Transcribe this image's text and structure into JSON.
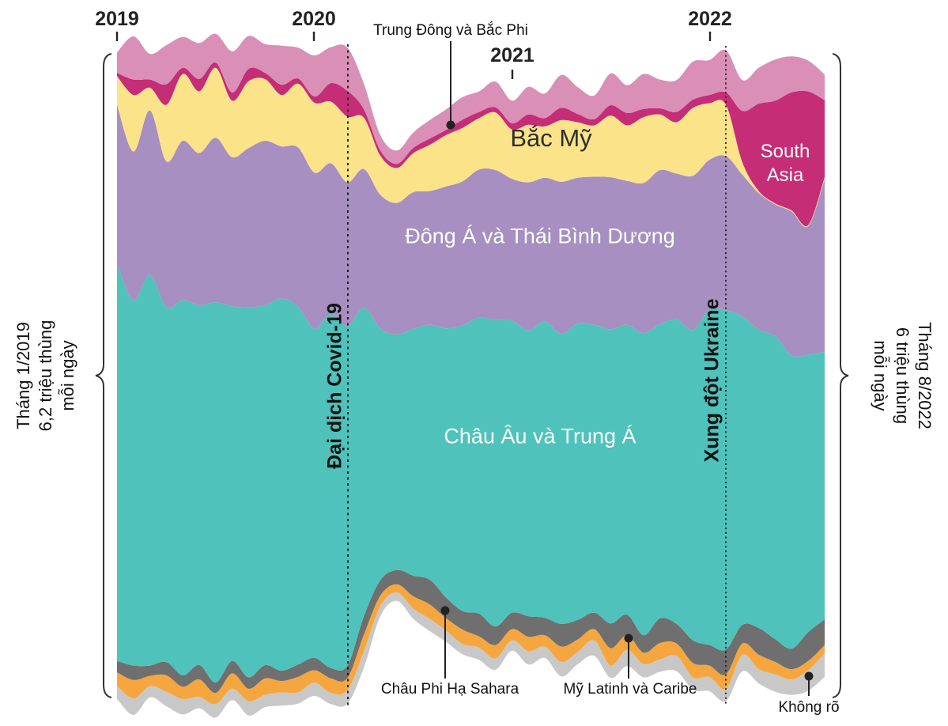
{
  "chart_data": {
    "type": "area",
    "stacked": true,
    "layout": "streamgraph-silhouette",
    "grid": false,
    "legend": "labels-inside-bands",
    "unit": "triệu thùng mỗi ngày (million barrels per day)",
    "x_tick_years": [
      "2019",
      "2020",
      "2021",
      "2022"
    ],
    "x": [
      "1/2019",
      "2/2019",
      "3/2019",
      "4/2019",
      "5/2019",
      "6/2019",
      "7/2019",
      "8/2019",
      "9/2019",
      "10/2019",
      "11/2019",
      "12/2019",
      "1/2020",
      "2/2020",
      "3/2020",
      "4/2020",
      "5/2020",
      "6/2020",
      "7/2020",
      "8/2020",
      "9/2020",
      "10/2020",
      "11/2020",
      "12/2020",
      "1/2021",
      "2/2021",
      "3/2021",
      "4/2021",
      "5/2021",
      "6/2021",
      "7/2021",
      "8/2021",
      "9/2021",
      "10/2021",
      "11/2021",
      "12/2021",
      "1/2022",
      "2/2022",
      "3/2022",
      "4/2022",
      "5/2022",
      "6/2022",
      "7/2022",
      "8/2022"
    ],
    "series": [
      {
        "name": "middle_east_north_africa",
        "label": "Trung Đông và Bắc Phi",
        "color": "#d98fb6",
        "values": [
          0.2,
          0.42,
          0.25,
          0.38,
          0.3,
          0.35,
          0.28,
          0.4,
          0.32,
          0.28,
          0.38,
          0.3,
          0.4,
          0.35,
          0.42,
          0.25,
          0.15,
          0.13,
          0.15,
          0.18,
          0.2,
          0.22,
          0.2,
          0.25,
          0.22,
          0.27,
          0.24,
          0.32,
          0.26,
          0.23,
          0.31,
          0.27,
          0.34,
          0.28,
          0.31,
          0.37,
          0.34,
          0.41,
          0.3,
          0.35,
          0.4,
          0.35,
          0.3,
          0.25
        ]
      },
      {
        "name": "south_asia",
        "label": "South Asia",
        "color": "#c52d77",
        "values": [
          0.03,
          0.15,
          0.08,
          0.2,
          0.06,
          0.12,
          0.05,
          0.08,
          0.12,
          0.06,
          0.1,
          0.05,
          0.06,
          0.18,
          0.25,
          0.08,
          0.05,
          0.04,
          0.05,
          0.06,
          0.05,
          0.08,
          0.06,
          0.05,
          0.06,
          0.1,
          0.08,
          0.12,
          0.08,
          0.06,
          0.1,
          0.12,
          0.08,
          0.06,
          0.1,
          0.08,
          0.08,
          0.12,
          0.5,
          0.85,
          1.0,
          1.15,
          1.3,
          0.75
        ]
      },
      {
        "name": "north_america",
        "label": "Bắc Mỹ",
        "color": "#fbe38a",
        "values": [
          0.28,
          0.55,
          0.22,
          0.55,
          0.65,
          0.6,
          0.68,
          0.55,
          0.65,
          0.6,
          0.5,
          0.62,
          0.68,
          0.6,
          0.64,
          0.5,
          0.38,
          0.34,
          0.38,
          0.45,
          0.5,
          0.52,
          0.5,
          0.56,
          0.48,
          0.56,
          0.5,
          0.6,
          0.54,
          0.5,
          0.6,
          0.54,
          0.64,
          0.54,
          0.5,
          0.66,
          0.55,
          0.5,
          0.12,
          0.02,
          0.01,
          0.01,
          0.01,
          0.02
        ]
      },
      {
        "name": "east_asia_pacific",
        "label": "Đông Á và Thái Bình Dương",
        "color": "#a78fc2",
        "values": [
          1.55,
          1.45,
          1.6,
          1.42,
          1.55,
          1.48,
          1.6,
          1.45,
          1.55,
          1.6,
          1.48,
          1.55,
          1.52,
          1.46,
          1.4,
          1.35,
          1.3,
          1.28,
          1.33,
          1.3,
          1.38,
          1.4,
          1.44,
          1.46,
          1.38,
          1.44,
          1.4,
          1.48,
          1.42,
          1.44,
          1.48,
          1.4,
          1.46,
          1.5,
          1.42,
          1.5,
          1.46,
          1.5,
          1.38,
          1.33,
          1.28,
          1.4,
          1.25,
          1.68
        ]
      },
      {
        "name": "europe_central_asia",
        "label": "Châu Âu và Trung Á",
        "color": "#4ec2bb",
        "values": [
          3.86,
          3.55,
          3.8,
          3.45,
          3.65,
          3.5,
          3.7,
          3.45,
          3.6,
          3.5,
          3.62,
          3.48,
          3.2,
          3.45,
          3.3,
          3.0,
          2.45,
          2.29,
          2.4,
          2.48,
          2.62,
          2.78,
          2.88,
          2.98,
          2.84,
          2.78,
          2.88,
          2.82,
          2.88,
          2.8,
          2.86,
          2.82,
          2.94,
          2.86,
          2.96,
          3.02,
          3.26,
          3.3,
          3.0,
          2.9,
          2.95,
          2.85,
          2.7,
          2.6
        ]
      },
      {
        "name": "sub_saharan_africa",
        "label": "Châu Phi Hạ Sahara",
        "color": "#6f6f6f",
        "values": [
          0.11,
          0.14,
          0.1,
          0.13,
          0.11,
          0.14,
          0.1,
          0.12,
          0.11,
          0.13,
          0.1,
          0.12,
          0.12,
          0.1,
          0.12,
          0.18,
          0.15,
          0.14,
          0.2,
          0.24,
          0.2,
          0.18,
          0.22,
          0.18,
          0.16,
          0.2,
          0.17,
          0.22,
          0.19,
          0.16,
          0.24,
          0.2,
          0.17,
          0.24,
          0.19,
          0.22,
          0.2,
          0.24,
          0.18,
          0.26,
          0.22,
          0.2,
          0.28,
          0.25
        ]
      },
      {
        "name": "latin_america_caribbean",
        "label": "Mỹ Latinh và Caribe",
        "color": "#f6a63f",
        "values": [
          0.13,
          0.18,
          0.1,
          0.16,
          0.12,
          0.17,
          0.11,
          0.15,
          0.12,
          0.16,
          0.11,
          0.15,
          0.12,
          0.14,
          0.12,
          0.16,
          0.1,
          0.08,
          0.12,
          0.14,
          0.12,
          0.14,
          0.11,
          0.13,
          0.11,
          0.14,
          0.11,
          0.15,
          0.12,
          0.11,
          0.17,
          0.14,
          0.11,
          0.16,
          0.12,
          0.14,
          0.11,
          0.14,
          0.11,
          0.14,
          0.12,
          0.1,
          0.09,
          0.08
        ]
      },
      {
        "name": "unknown",
        "label": "Không rõ",
        "color": "#c8c8c8",
        "values": [
          0.13,
          0.16,
          0.11,
          0.14,
          0.15,
          0.11,
          0.13,
          0.11,
          0.14,
          0.12,
          0.13,
          0.11,
          0.13,
          0.11,
          0.13,
          0.16,
          0.1,
          0.08,
          0.1,
          0.12,
          0.11,
          0.1,
          0.12,
          0.11,
          0.1,
          0.13,
          0.11,
          0.14,
          0.12,
          0.15,
          0.12,
          0.16,
          0.13,
          0.12,
          0.15,
          0.12,
          0.14,
          0.12,
          0.16,
          0.14,
          0.17,
          0.15,
          0.2,
          0.23
        ]
      }
    ],
    "events": [
      {
        "label": "Đại dịch Covid-19",
        "x": "3/2020"
      },
      {
        "label": "Xung đột Ukraine",
        "x": "2/2022"
      }
    ],
    "endpoints": {
      "start": {
        "line1": "Tháng 1/2019",
        "line2": "6,2 triệu thùng",
        "line3": "mỗi ngày",
        "value": 6.2
      },
      "end": {
        "line1": "Tháng 8/2022",
        "line2": "6 triệu thùng",
        "line3": "mỗi ngày",
        "value": 6.0
      }
    }
  }
}
